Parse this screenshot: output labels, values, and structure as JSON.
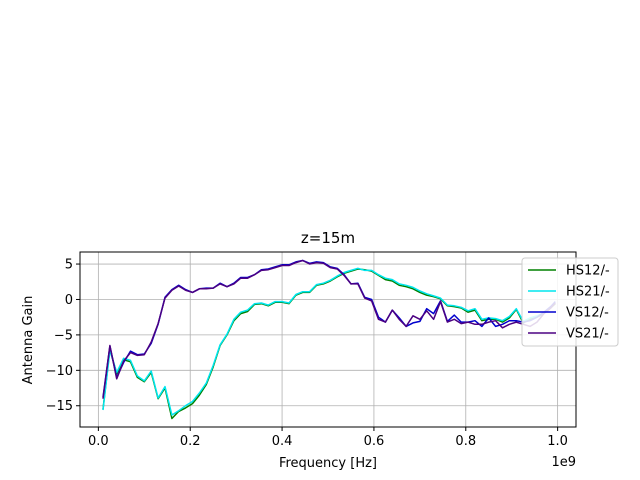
{
  "chart_data": {
    "type": "line",
    "title": "z=15m",
    "xlabel": "Frequency [Hz]",
    "ylabel": "Antenna Gain",
    "x_offset_label": "1e9",
    "xlim": [
      -0.04,
      1.04
    ],
    "ylim": [
      -18,
      6.7
    ],
    "x_ticks": [
      0.0,
      0.2,
      0.4,
      0.6,
      0.8,
      1.0
    ],
    "x_tick_labels": [
      "0.0",
      "0.2",
      "0.4",
      "0.6",
      "0.8",
      "1.0"
    ],
    "y_ticks": [
      5,
      0,
      -5,
      -10,
      -15
    ],
    "y_tick_labels": [
      "5",
      "0",
      "−5",
      "−10",
      "−15"
    ],
    "grid": true,
    "legend_position": "right",
    "colors": {
      "HS12/-": "#008000",
      "HS21/-": "#00e5ee",
      "VS12/-": "#0000cd",
      "VS21/-": "#4b0082"
    },
    "x": [
      0.01,
      0.025,
      0.04,
      0.055,
      0.07,
      0.085,
      0.1,
      0.115,
      0.13,
      0.145,
      0.16,
      0.175,
      0.19,
      0.205,
      0.22,
      0.235,
      0.25,
      0.265,
      0.28,
      0.295,
      0.31,
      0.325,
      0.34,
      0.355,
      0.37,
      0.385,
      0.4,
      0.415,
      0.43,
      0.445,
      0.46,
      0.475,
      0.49,
      0.505,
      0.52,
      0.535,
      0.55,
      0.565,
      0.58,
      0.595,
      0.61,
      0.625,
      0.64,
      0.655,
      0.67,
      0.685,
      0.7,
      0.715,
      0.73,
      0.745,
      0.76,
      0.775,
      0.79,
      0.805,
      0.82,
      0.835,
      0.85,
      0.865,
      0.88,
      0.895,
      0.91,
      0.925,
      0.94,
      0.955,
      0.97,
      0.985,
      0.995
    ],
    "series": [
      {
        "name": "HS12/-",
        "values": [
          -15.5,
          -7.0,
          -10.5,
          -8.5,
          -8.8,
          -11.0,
          -11.6,
          -10.3,
          -14.0,
          -12.5,
          -16.8,
          -15.8,
          -15.3,
          -14.7,
          -13.5,
          -12.0,
          -9.5,
          -6.5,
          -5.0,
          -3.0,
          -2.0,
          -1.7,
          -0.7,
          -0.6,
          -0.9,
          -0.4,
          -0.4,
          -0.6,
          0.6,
          1.0,
          1.0,
          2.0,
          2.2,
          2.6,
          3.2,
          3.7,
          4.0,
          4.3,
          4.2,
          4.0,
          3.4,
          2.8,
          2.6,
          2.0,
          1.8,
          1.5,
          1.0,
          0.6,
          0.4,
          0.1,
          -0.9,
          -1.0,
          -1.2,
          -1.8,
          -1.5,
          -3.0,
          -2.8,
          -2.8,
          -3.2,
          -2.6,
          -1.4,
          -3.3,
          -2.8,
          -2.5,
          -2.0,
          -1.2,
          -0.6
        ]
      },
      {
        "name": "HS21/-",
        "values": [
          -15.6,
          -7.2,
          -10.3,
          -8.3,
          -8.6,
          -10.8,
          -11.5,
          -10.1,
          -13.9,
          -12.3,
          -16.3,
          -15.7,
          -15.0,
          -14.4,
          -13.2,
          -11.8,
          -9.3,
          -6.4,
          -4.9,
          -2.8,
          -1.8,
          -1.5,
          -0.6,
          -0.5,
          -0.8,
          -0.3,
          -0.3,
          -0.5,
          0.7,
          1.1,
          1.1,
          2.1,
          2.3,
          2.7,
          3.3,
          3.8,
          4.1,
          4.4,
          4.1,
          4.1,
          3.5,
          3.0,
          2.8,
          2.2,
          2.0,
          1.7,
          1.2,
          0.8,
          0.5,
          0.2,
          -0.8,
          -0.9,
          -1.1,
          -1.6,
          -1.3,
          -2.8,
          -2.6,
          -2.7,
          -3.0,
          -2.4,
          -1.3,
          -3.1,
          -2.6,
          -2.3,
          -1.9,
          -1.1,
          -0.5
        ]
      },
      {
        "name": "VS12/-",
        "values": [
          -13.8,
          -6.6,
          -11.0,
          -8.9,
          -7.3,
          -7.8,
          -7.7,
          -6.2,
          -3.5,
          0.3,
          1.4,
          2.0,
          1.4,
          1.0,
          1.5,
          1.6,
          1.6,
          2.3,
          1.8,
          2.3,
          3.1,
          3.1,
          3.5,
          4.2,
          4.3,
          4.6,
          4.9,
          4.9,
          5.3,
          5.5,
          5.1,
          5.3,
          5.2,
          4.6,
          4.4,
          3.5,
          2.2,
          2.3,
          0.3,
          0.0,
          -2.5,
          -3.2,
          -1.5,
          -2.6,
          -3.8,
          -3.3,
          -3.1,
          -1.3,
          -2.0,
          -0.2,
          -3.1,
          -2.2,
          -3.2,
          -3.2,
          -3.0,
          -3.8,
          -2.6,
          -3.8,
          -3.5,
          -3.0,
          -3.0,
          -3.2,
          -3.0,
          -2.5,
          -1.8,
          -1.0,
          -0.3
        ]
      },
      {
        "name": "VS21/-",
        "values": [
          -14.0,
          -6.5,
          -11.2,
          -8.7,
          -7.5,
          -7.9,
          -7.8,
          -6.0,
          -3.4,
          0.2,
          1.3,
          1.9,
          1.3,
          1.0,
          1.5,
          1.5,
          1.6,
          2.2,
          1.8,
          2.2,
          3.0,
          3.0,
          3.5,
          4.1,
          4.2,
          4.5,
          4.8,
          4.8,
          5.2,
          5.5,
          5.0,
          5.2,
          5.1,
          4.5,
          4.3,
          3.4,
          2.2,
          2.2,
          0.2,
          -0.2,
          -2.8,
          -3.2,
          -1.5,
          -2.8,
          -3.8,
          -2.3,
          -2.8,
          -1.6,
          -2.8,
          -0.3,
          -3.2,
          -2.8,
          -3.4,
          -3.2,
          -3.5,
          -3.5,
          -3.2,
          -3.0,
          -4.0,
          -3.5,
          -3.2,
          -3.5,
          -3.8,
          -3.2,
          -2.0,
          -1.2,
          -0.5
        ]
      }
    ]
  }
}
